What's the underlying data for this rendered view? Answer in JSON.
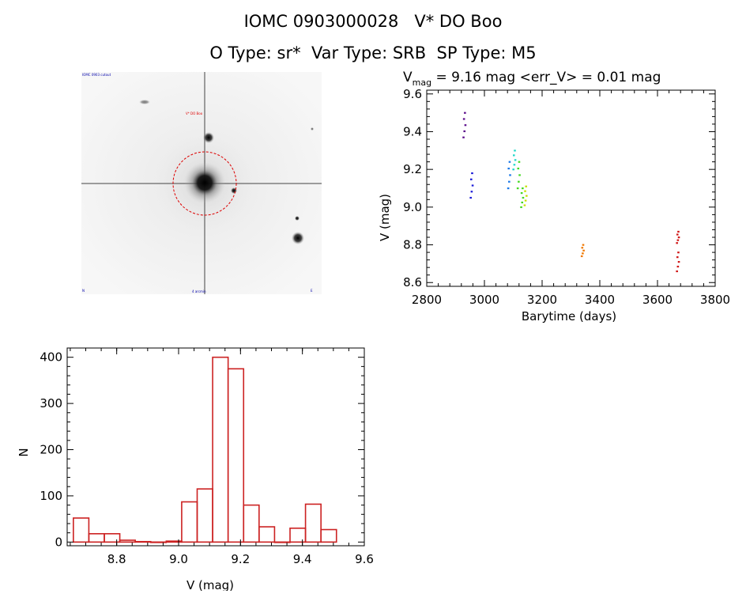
{
  "header": {
    "title": "IOMC 0903000028   V* DO Boo",
    "subtitle": "O Type: sr*  Var Type: SRB  SP Type: M5"
  },
  "image_panel": {
    "labels": {
      "top_left": "IOMC 0903 cutout",
      "marker": "V* DO Boo",
      "bottom_left": "N",
      "bottom_center": "4 arcmin",
      "bottom_right": "E"
    }
  },
  "colors": {
    "hist_bar": "#cc2222",
    "aperture": "#dd0000",
    "seq": [
      "#5a0a8a",
      "#1a1ad8",
      "#1a78e8",
      "#22d8c8",
      "#44d822",
      "#c8e000",
      "#f07800",
      "#d01818"
    ]
  },
  "chart_data": [
    {
      "type": "scatter",
      "title_main": "V",
      "title_sub": "mag",
      "title_rest": " = 9.16 mag <err_V> = 0.01 mag",
      "xlabel": "Barytime (days)",
      "ylabel": "V (mag)",
      "xlim": [
        2800,
        3800
      ],
      "ylim": [
        9.62,
        8.58
      ],
      "xticks": [
        "2800",
        "3000",
        "3200",
        "3400",
        "3600",
        "3800"
      ],
      "yticks": [
        "8.6",
        "8.8",
        "9.0",
        "9.2",
        "9.4",
        "9.6"
      ],
      "groups": [
        {
          "x": 2930,
          "y_top": 9.37,
          "y_bottom": 9.5,
          "color": "#5a0a8a"
        },
        {
          "x": 2955,
          "y_top": 9.05,
          "y_bottom": 9.18,
          "color": "#1a1ad8"
        },
        {
          "x": 3085,
          "y_top": 9.1,
          "y_bottom": 9.24,
          "color": "#1a78e8"
        },
        {
          "x": 3103,
          "y_top": 9.2,
          "y_bottom": 9.3,
          "color": "#22d8c8"
        },
        {
          "x": 3118,
          "y_top": 9.1,
          "y_bottom": 9.24,
          "color": "#44d822"
        },
        {
          "x": 3130,
          "y_top": 9.0,
          "y_bottom": 9.1,
          "color": "#44d822"
        },
        {
          "x": 3142,
          "y_top": 9.01,
          "y_bottom": 9.11,
          "color": "#c8e000"
        },
        {
          "x": 3340,
          "y_top": 8.74,
          "y_bottom": 8.8,
          "color": "#f07800"
        },
        {
          "x": 3670,
          "y_top": 8.66,
          "y_bottom": 8.76,
          "color": "#d01818"
        },
        {
          "x": 3670,
          "y_top": 8.81,
          "y_bottom": 8.87,
          "color": "#d01818"
        }
      ]
    },
    {
      "type": "bar",
      "xlabel": "V (mag)",
      "ylabel": "N",
      "xlim": [
        8.64,
        9.6
      ],
      "ylim": [
        -8,
        420
      ],
      "xticks": [
        "8.8",
        "9.0",
        "9.2",
        "9.4",
        "9.6"
      ],
      "yticks": [
        "0",
        "100",
        "200",
        "300",
        "400"
      ],
      "bin_width": 0.05,
      "bins": [
        {
          "x0": 8.66,
          "n": 52
        },
        {
          "x0": 8.71,
          "n": 18
        },
        {
          "x0": 8.76,
          "n": 18
        },
        {
          "x0": 8.81,
          "n": 4
        },
        {
          "x0": 8.86,
          "n": 1
        },
        {
          "x0": 8.91,
          "n": 0
        },
        {
          "x0": 8.96,
          "n": 2
        },
        {
          "x0": 9.01,
          "n": 87
        },
        {
          "x0": 9.06,
          "n": 115
        },
        {
          "x0": 9.11,
          "n": 400
        },
        {
          "x0": 9.16,
          "n": 375
        },
        {
          "x0": 9.21,
          "n": 80
        },
        {
          "x0": 9.26,
          "n": 33
        },
        {
          "x0": 9.31,
          "n": 0
        },
        {
          "x0": 9.36,
          "n": 30
        },
        {
          "x0": 9.41,
          "n": 82
        },
        {
          "x0": 9.46,
          "n": 27
        }
      ]
    }
  ]
}
